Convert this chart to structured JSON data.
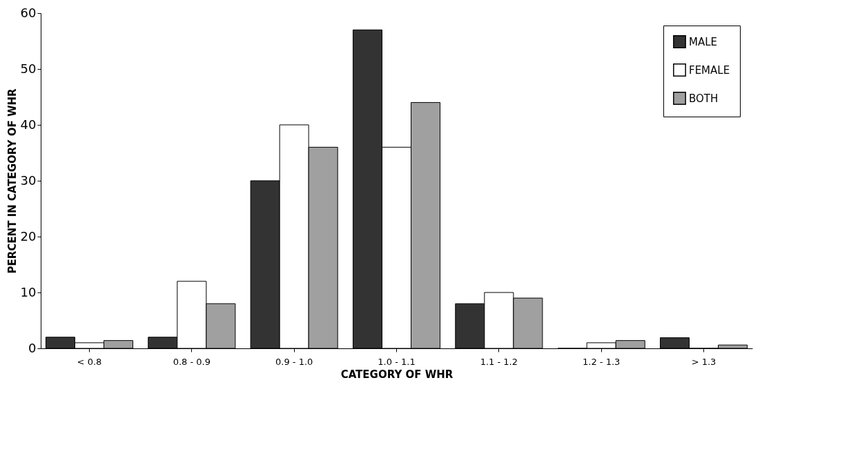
{
  "chart_data": {
    "type": "bar",
    "xlabel": "CATEGORY OF WHR",
    "ylabel": "PERCENT IN CATEGORY OF WHR",
    "categories": [
      "< 0.8",
      "0.8 - 0.9",
      "0.9 - 1.0",
      "1.0 - 1.1",
      "1.1 - 1.2",
      "1.2 - 1.3",
      "> 1.3"
    ],
    "series": [
      {
        "name": "MALE",
        "color": "#333333",
        "values": [
          2,
          2,
          30,
          57,
          8,
          0,
          1.9
        ]
      },
      {
        "name": "FEMALE",
        "color": "#ffffff",
        "values": [
          1,
          12,
          40,
          36,
          10,
          1,
          0
        ]
      },
      {
        "name": "BOTH",
        "color": "#a0a0a0",
        "values": [
          1.4,
          8,
          36,
          44,
          9,
          1.4,
          0.6
        ]
      }
    ],
    "ylim": [
      0,
      60
    ],
    "yticks": [
      0,
      10,
      20,
      30,
      40,
      50,
      60
    ],
    "grid": false,
    "legend": "top right"
  }
}
